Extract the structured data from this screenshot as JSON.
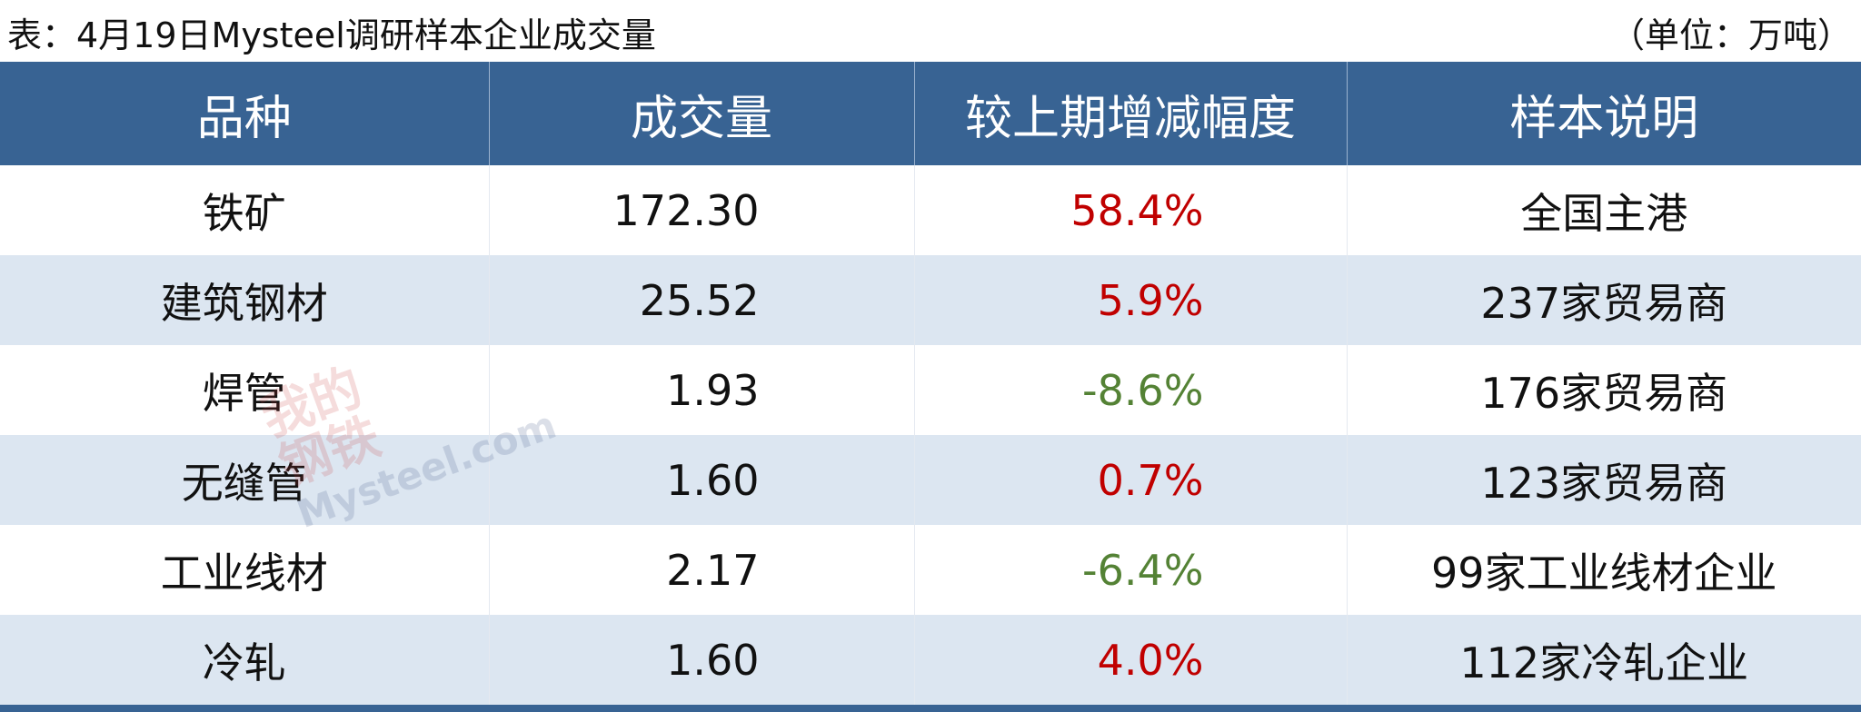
{
  "header": {
    "title": "表：4月19日Mysteel调研样本企业成交量",
    "unit": "（单位：万吨）"
  },
  "table": {
    "columns": [
      "品种",
      "成交量",
      "较上期增减幅度",
      "样本说明"
    ],
    "rows": [
      {
        "variety": "铁矿",
        "volume": "172.30",
        "change": "58.4%",
        "change_color": "#c00000",
        "sample": "全国主港"
      },
      {
        "variety": "建筑钢材",
        "volume": "25.52",
        "change": "5.9%",
        "change_color": "#c00000",
        "sample": "237家贸易商"
      },
      {
        "variety": "焊管",
        "volume": "1.93",
        "change": "-8.6%",
        "change_color": "#548235",
        "sample": "176家贸易商"
      },
      {
        "variety": "无缝管",
        "volume": "1.60",
        "change": "0.7%",
        "change_color": "#c00000",
        "sample": "123家贸易商"
      },
      {
        "variety": "工业线材",
        "volume": "2.17",
        "change": "-6.4%",
        "change_color": "#548235",
        "sample": "99家工业线材企业"
      },
      {
        "variety": "冷轧",
        "volume": "1.60",
        "change": "4.0%",
        "change_color": "#c00000",
        "sample": "112家冷轧企业"
      }
    ]
  },
  "watermark": {
    "line1": "我的",
    "line2": "钢铁",
    "site": "Mysteel.com"
  }
}
